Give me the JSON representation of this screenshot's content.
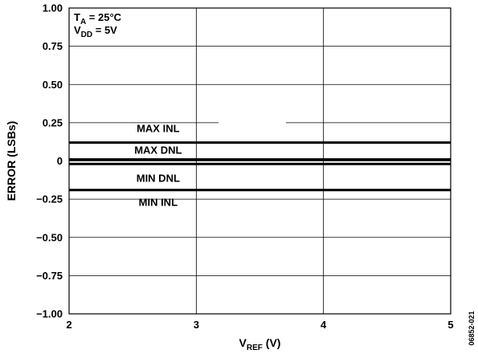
{
  "chart_data": {
    "type": "line",
    "xlabel": {
      "main": "V",
      "sub": "REF",
      "unit": " (V)"
    },
    "ylabel": "ERROR (LSBs)",
    "xlim": [
      2,
      5
    ],
    "ylim": [
      -1.0,
      1.0
    ],
    "x_ticks": [
      2,
      3,
      4,
      5
    ],
    "x_tick_labels": [
      "2",
      "3",
      "4",
      "5"
    ],
    "y_ticks": [
      1.0,
      0.75,
      0.5,
      0.25,
      0,
      -0.25,
      -0.5,
      -0.75,
      -1.0
    ],
    "y_tick_labels": [
      "1.00",
      "0.75",
      "0.50",
      "0.25",
      "0",
      "−0.25",
      "−0.50",
      "−0.75",
      "−1.00"
    ],
    "grid": true,
    "conditions": [
      {
        "main": "T",
        "sub": "A",
        "rest": " = 25°C"
      },
      {
        "main": "V",
        "sub": "DD",
        "rest": " = 5V"
      }
    ],
    "series": [
      {
        "name": "MAX INL",
        "x": [
          2,
          5
        ],
        "y": [
          0.12,
          0.12
        ]
      },
      {
        "name": "MAX DNL",
        "x": [
          2,
          5
        ],
        "y": [
          0.01,
          0.01
        ]
      },
      {
        "name": "MIN DNL",
        "x": [
          2,
          5
        ],
        "y": [
          -0.02,
          -0.02
        ]
      },
      {
        "name": "MIN INL",
        "x": [
          2,
          5
        ],
        "y": [
          -0.19,
          -0.19
        ]
      }
    ],
    "figure_id": "06852-021"
  }
}
